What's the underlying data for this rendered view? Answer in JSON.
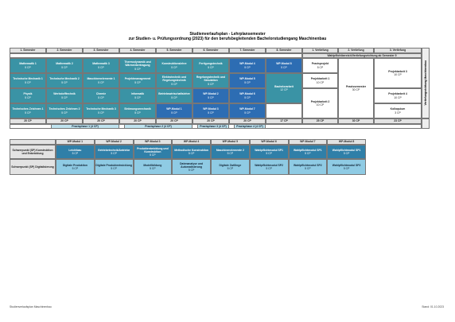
{
  "header": {
    "title": "Studienverlaufsplan - Lehrplansemester",
    "subtitle": "zur Studien- u. Prüfungsordnung (2023) für den berufsbegleitenden Bachelorstudiengang Maschinenbau"
  },
  "plan": {
    "columns": [
      "1. Semester",
      "2. Semester",
      "3. Semester",
      "4. Semester",
      "5. Semester",
      "6. Semester",
      "7. Semester",
      "8. Semester",
      "1. Vertiefung",
      "2. Vertiefung",
      "3. Vertiefung"
    ],
    "elective_header": "Wahlpflichtbereich/Vertiefungsrichtung ab Semester 9",
    "side_label": "Vertiefungsrichtung Maschinenbau",
    "modules": [
      [
        {
          "name": "Mathematik 1",
          "cp": "5 CP",
          "color": "#3a93a5"
        },
        {
          "name": "Technische Mechanik 1",
          "cp": "5 CP",
          "color": "#3a93a5"
        },
        {
          "name": "Physik",
          "cp": "5 CP",
          "color": "#3a93a5"
        },
        {
          "name": "Technisches Zeichnen 1",
          "cp": "5 CP",
          "color": "#3a93a5"
        }
      ],
      [
        {
          "name": "Mathematik 2",
          "cp": "5 CP",
          "color": "#3a93a5"
        },
        {
          "name": "Technische Mechanik 2",
          "cp": "5 CP",
          "color": "#3a93a5"
        },
        {
          "name": "Werkstofftechnik",
          "cp": "5 CP",
          "color": "#3a93a5"
        },
        {
          "name": "Technisches Zeichnen 2",
          "cp": "5 CP",
          "color": "#3a93a5"
        }
      ],
      [
        {
          "name": "Mathematik 3",
          "cp": "5 CP",
          "color": "#3a93a5"
        },
        {
          "name": "Maschinenelemente 1",
          "cp": "5 CP",
          "color": "#3a93a5"
        },
        {
          "name": "Chemie",
          "cp": "5 CP",
          "color": "#3a93a5"
        },
        {
          "name": "Technische Mechanik 3",
          "cp": "5 CP",
          "color": "#3a93a5"
        }
      ],
      [
        {
          "name": "Thermodynamik und Wärmeübertragung",
          "cp": "5 CP",
          "color": "#3a93a5"
        },
        {
          "name": "Projektmanagement",
          "cp": "5 CP",
          "color": "#3a93a5"
        },
        {
          "name": "Informatik",
          "cp": "5 CP",
          "color": "#3a93a5"
        },
        {
          "name": "Strömungsmechanik",
          "cp": "5 CP",
          "color": "#3a93a5"
        }
      ],
      [
        {
          "name": "Konstruktionslehre",
          "cp": "5 CP",
          "color": "#3a93a5"
        },
        {
          "name": "Elektrotechnik und Regelungstechnik",
          "cp": "5 CP",
          "color": "#3a93a5"
        },
        {
          "name": "Betriebswirtschaftslehre",
          "cp": "5 CP",
          "color": "#3a93a5"
        },
        {
          "name": "WP-Modul 1",
          "cp": "5 CP",
          "color": "#2d6db3"
        }
      ],
      [
        {
          "name": "Fertigungstechnik",
          "cp": "5 CP",
          "color": "#3a93a5"
        },
        {
          "name": "Regelungstechnik und Simulation",
          "cp": "5 CP",
          "color": "#3a93a5"
        },
        {
          "name": "WP-Modul 2",
          "cp": "5 CP",
          "color": "#2d6db3"
        },
        {
          "name": "WP-Modul 3",
          "cp": "5 CP",
          "color": "#2d6db3"
        }
      ],
      [
        {
          "name": "WP-Modul 4",
          "cp": "5 CP",
          "color": "#2d6db3"
        },
        {
          "name": "WP-Modul 5",
          "cp": "5 CP",
          "color": "#2d6db3"
        },
        {
          "name": "WP-Modul 6",
          "cp": "5 CP",
          "color": "#2d6db3"
        },
        {
          "name": "WP-Modul 7",
          "cp": "5 CP",
          "color": "#2d6db3"
        }
      ],
      [
        {
          "name": "WP-Modul 8",
          "cp": "5 CP",
          "color": "#2d6db3"
        },
        {
          "name": "Bachelorarbeit",
          "cp": "12 CP",
          "color": "#3a93a5"
        }
      ],
      [
        {
          "name": "Praxisprojekt",
          "cp": "5 CP",
          "color": "#ffffff"
        },
        {
          "name": "Projektarbeit 1",
          "cp": "10 CP",
          "color": "#ffffff"
        },
        {
          "name": "Projektarbeit 2",
          "cp": "10 CP",
          "color": "#ffffff"
        }
      ],
      [
        {
          "name": "Praxissemester",
          "cp": "30 CP",
          "color": "#ffffff"
        }
      ],
      [
        {
          "name": "Projektarbeit 3",
          "cp": "10 CP",
          "color": "#ffffff"
        },
        {
          "name": "Projektarbeit 4",
          "cp": "10 CP",
          "color": "#ffffff"
        },
        {
          "name": "Kolloquium",
          "cp": "3 CP",
          "color": "#ffffff"
        }
      ]
    ],
    "totals": [
      "20 CP",
      "20 CP",
      "20 CP",
      "20 CP",
      "20 CP",
      "20 CP",
      "20 CP",
      "17 CP",
      "25 CP",
      "30 CP",
      "23 CP"
    ],
    "practice": [
      "Praxisphase 1 (4 CP)",
      "Praxisphase 2 (4 CP)",
      "Praxisphase 3 (4 CP)",
      "Praxisphase 4 (4 CP)"
    ]
  },
  "electives": {
    "columns": [
      "WP-Modul 1",
      "WP-Modul 2",
      "WP-Modul 3",
      "WP-Modul 4",
      "WP-Modul 5",
      "WP-Modul 6",
      "WP-Modul 7",
      "WP-Modul 8"
    ],
    "rows": [
      {
        "label": "Schwerpunkt (SP) Konstruktion und Entwicklung",
        "color": "#2f7fa8",
        "modules": [
          {
            "name": "Leichtbau",
            "cp": "5 CP"
          },
          {
            "name": "Getriebetechnik/Antriebe",
            "cp": "5 CP"
          },
          {
            "name": "Produktentwicklung und Konstruktion",
            "cp": "5 CP"
          },
          {
            "name": "Methodische Konstruktion",
            "cp": "5 CP"
          },
          {
            "name": "Maschinenelemente 2",
            "cp": "5 CP"
          },
          {
            "name": "Wahlpflichtmodul SP1",
            "cp": "5 CP"
          },
          {
            "name": "Wahlpflichtmodul SP1",
            "cp": "5 CP"
          },
          {
            "name": "Wahlpflichtmodul SP1",
            "cp": "5 CP"
          }
        ]
      },
      {
        "label": "Schwerpunkt (SP) Digitalisierung",
        "color": "#8fcbe4",
        "modules": [
          {
            "name": "Digitale Produktion",
            "cp": "5 CP"
          },
          {
            "name": "Digitale Produktentwicklung",
            "cp": "5 CP"
          },
          {
            "name": "Modellbildung",
            "cp": "5 CP"
          },
          {
            "name": "Datenanalyse und Automatisierung",
            "cp": "5 CP"
          },
          {
            "name": "Digitale Zwillinge",
            "cp": "5 CP"
          },
          {
            "name": "Wahlpflichtmodul SP2",
            "cp": "5 CP"
          },
          {
            "name": "Wahlpflichtmodul SP2",
            "cp": "5 CP"
          },
          {
            "name": "Wahlpflichtmodul SP2",
            "cp": "5 CP"
          }
        ]
      }
    ]
  },
  "footer": {
    "left": "Studienverlaufsplan Maschinenbau",
    "right": "Stand: 01.10.2023"
  }
}
